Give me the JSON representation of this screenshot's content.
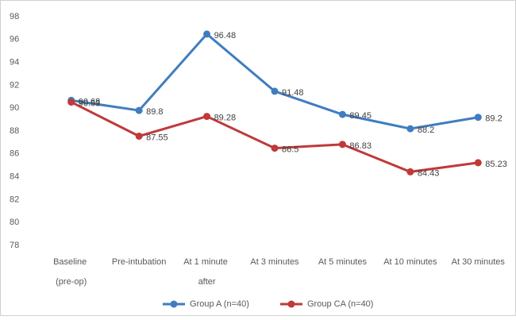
{
  "chart_data": {
    "type": "line",
    "categories": [
      "Baseline (pre-op)",
      "Pre-intubation",
      "At 1 minute after",
      "At 3 minutes",
      "At 5 minutes",
      "At 10 minutes",
      "At 30 minutes"
    ],
    "series": [
      {
        "name": "Group A (n=40)",
        "color": "#3f7dc0",
        "values": [
          90.68,
          89.8,
          96.48,
          91.48,
          89.45,
          88.2,
          89.2
        ]
      },
      {
        "name": "Group CA (n=40)",
        "color": "#c0393b",
        "values": [
          90.53,
          87.55,
          89.28,
          86.5,
          86.83,
          84.43,
          85.23
        ]
      }
    ],
    "ylim": [
      78,
      98
    ],
    "yticks": [
      78,
      80,
      82,
      84,
      86,
      88,
      90,
      92,
      94,
      96,
      98
    ],
    "grid": false,
    "legend": "bottom"
  }
}
